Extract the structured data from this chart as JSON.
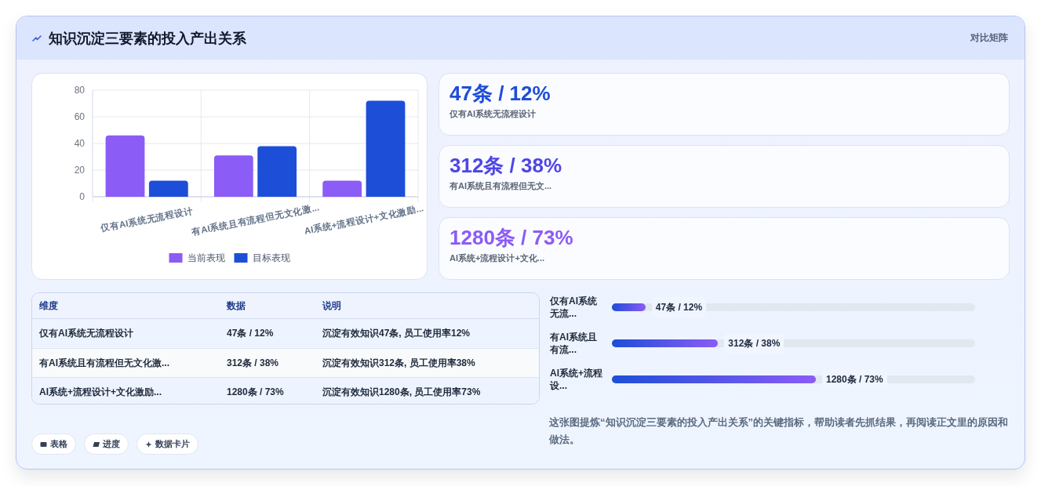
{
  "chart_data": [
    {
      "type": "other",
      "title": "知识沉淀三要素的投入产出关系",
      "subtitle": "对比矩阵",
      "annotations": [
        "表格",
        "进度",
        "数据卡片"
      ]
    },
    {
      "type": "bar",
      "categories": [
        "仅有AI系统无流程设计",
        "有AI系统且有流程但无文化激...",
        "AI系统+流程设计+文化激励..."
      ],
      "series": [
        {
          "name": "当前表现",
          "color": "#8b5cf6",
          "values": [
            46,
            31,
            12
          ]
        },
        {
          "name": "目标表现",
          "color": "#1d4ed8",
          "values": [
            12,
            38,
            72
          ]
        }
      ],
      "ylim": [
        0,
        80
      ],
      "yticks": [
        0,
        20,
        40,
        60,
        80
      ],
      "grid": true,
      "legend": "bottom"
    },
    {
      "type": "other",
      "categories": [
        "仅有AI系统无流程设计",
        "有AI系统且有流程但无文...",
        "AI系统+流程设计+文化..."
      ],
      "value_labels": [
        "47条 / 12%",
        "312条 / 38%",
        "1280条 / 73%"
      ]
    },
    {
      "type": "other",
      "ylabel": "维度",
      "categories": [
        "数据",
        "说明"
      ],
      "y_categories": [
        "仅有AI系统无流程设计",
        "有AI系统且有流程但无文化激...",
        "AI系统+流程设计+文化激励..."
      ],
      "cell_labels": [
        [
          "47条 / 12%",
          "沉淀有效知识47条, 员工使用率12%"
        ],
        [
          "312条 / 38%",
          "沉淀有效知识312条, 员工使用率38%"
        ],
        [
          "1280条 / 73%",
          "沉淀有效知识1280条, 员工使用率73%"
        ]
      ]
    },
    {
      "type": "bar",
      "orientation": "horizontal",
      "categories": [
        "仅有AI系统无流...",
        "有AI系统且有流...",
        "AI系统+流程设..."
      ],
      "values": [
        12,
        38,
        73
      ],
      "value_labels": [
        "47条 / 12%",
        "312条 / 38%",
        "1280条 / 73%"
      ],
      "color": "#1d4ed8",
      "annotations": [
        "这张图提炼“知识沉淀三要素的投入产出关系”的关键指标，帮助读者先抓结果，再阅读正文里的原因和做法。"
      ]
    }
  ]
}
